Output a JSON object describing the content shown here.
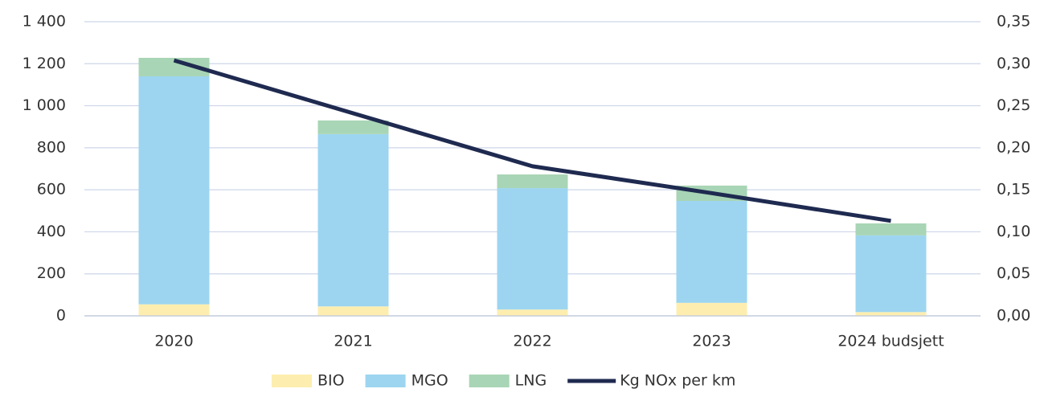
{
  "chart_data": {
    "type": "bar",
    "stacked": true,
    "categories": [
      "2020",
      "2021",
      "2022",
      "2023",
      "2024 budsjett"
    ],
    "series": [
      {
        "name": "BIO",
        "color": "#fdeeb0",
        "values": [
          55,
          45,
          30,
          62,
          18
        ]
      },
      {
        "name": "MGO",
        "color": "#9dd5f0",
        "values": [
          1085,
          820,
          578,
          485,
          365
        ]
      },
      {
        "name": "LNG",
        "color": "#a8d5b5",
        "values": [
          88,
          65,
          65,
          73,
          57
        ]
      },
      {
        "name": "Kg NOx per km",
        "color": "#1f2a50",
        "axis": "y2",
        "values": [
          0.304,
          0.241,
          0.178,
          0.146,
          0.113
        ]
      }
    ],
    "ylim": [
      0,
      1400
    ],
    "yticks": [
      0,
      200,
      400,
      600,
      800,
      {
        "value": 1000,
        "label": "1 000"
      },
      {
        "value": 1200,
        "label": "1 200"
      },
      {
        "value": 1400,
        "label": "1 400"
      }
    ],
    "y2lim": [
      0,
      0.35
    ],
    "y2ticks": [
      {
        "value": 0,
        "label": "0,00"
      },
      {
        "value": 0.05,
        "label": "0,05"
      },
      {
        "value": 0.1,
        "label": "0,10"
      },
      {
        "value": 0.15,
        "label": "0,15"
      },
      {
        "value": 0.2,
        "label": "0,20"
      },
      {
        "value": 0.25,
        "label": "0,25"
      },
      {
        "value": 0.3,
        "label": "0,30"
      },
      {
        "value": 0.35,
        "label": "0,35"
      }
    ],
    "grid": true,
    "legend": "bottom"
  }
}
